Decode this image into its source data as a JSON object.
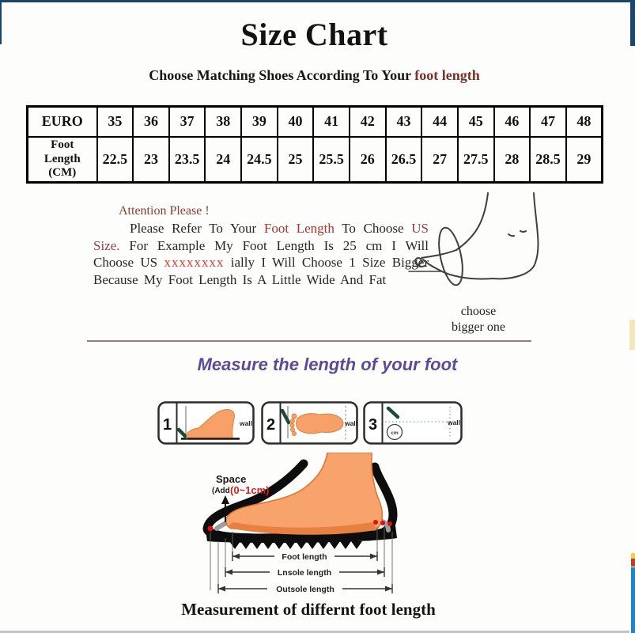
{
  "page": {
    "title": "Size Chart",
    "subtitle_prefix": "Choose Matching Shoes According To Your ",
    "subtitle_highlight": "foot length",
    "bottom_caption": "Measurement of differnt foot length"
  },
  "size_table": {
    "header_row_label": "EURO",
    "length_row_label_lines": [
      "Foot",
      "Length",
      "(CM)"
    ],
    "euro_sizes": [
      "35",
      "36",
      "37",
      "38",
      "39",
      "40",
      "41",
      "42",
      "43",
      "44",
      "45",
      "46",
      "47",
      "48"
    ],
    "foot_lengths_cm": [
      "22.5",
      "23",
      "23.5",
      "24",
      "24.5",
      "25",
      "25.5",
      "26",
      "26.5",
      "27",
      "27.5",
      "28",
      "28.5",
      "29"
    ]
  },
  "attention": {
    "heading": "Attention Please !",
    "seg_1": "Please Refer To Your ",
    "seg_foot_length": "Foot Length",
    "seg_2": " To Choose ",
    "seg_us_size": "US Size.",
    "seg_3": " For Example My Foot Length Is 25 cm I Will Choose US ",
    "seg_redacted": "xxxxxxxx",
    "seg_4": " ially I Will Choose 1 Size Bigger Because My Foot Length Is A Little Wide And Fat",
    "foot_note_line1": "choose",
    "foot_note_line2": "bigger one"
  },
  "measure": {
    "heading": "Measure the length of your foot",
    "steps": [
      {
        "num": "1",
        "wall": "wall"
      },
      {
        "num": "2",
        "wall": "wall"
      },
      {
        "num": "3",
        "wall": "wall",
        "circle_label": "cm"
      }
    ]
  },
  "diagram": {
    "space_label": "Space",
    "space_add": "(Add",
    "space_range": "(0~1cm)",
    "dims": [
      "Foot length",
      "Lnsole length",
      "Outsole length"
    ]
  },
  "colors": {
    "accent_maroon": "#7e2f28",
    "accent_red": "#e03a30",
    "accent_purple": "#5b4b96",
    "border_navy": "#17476f",
    "edge_blue": "#1d86c8",
    "divider_brown": "#9d7b75"
  }
}
